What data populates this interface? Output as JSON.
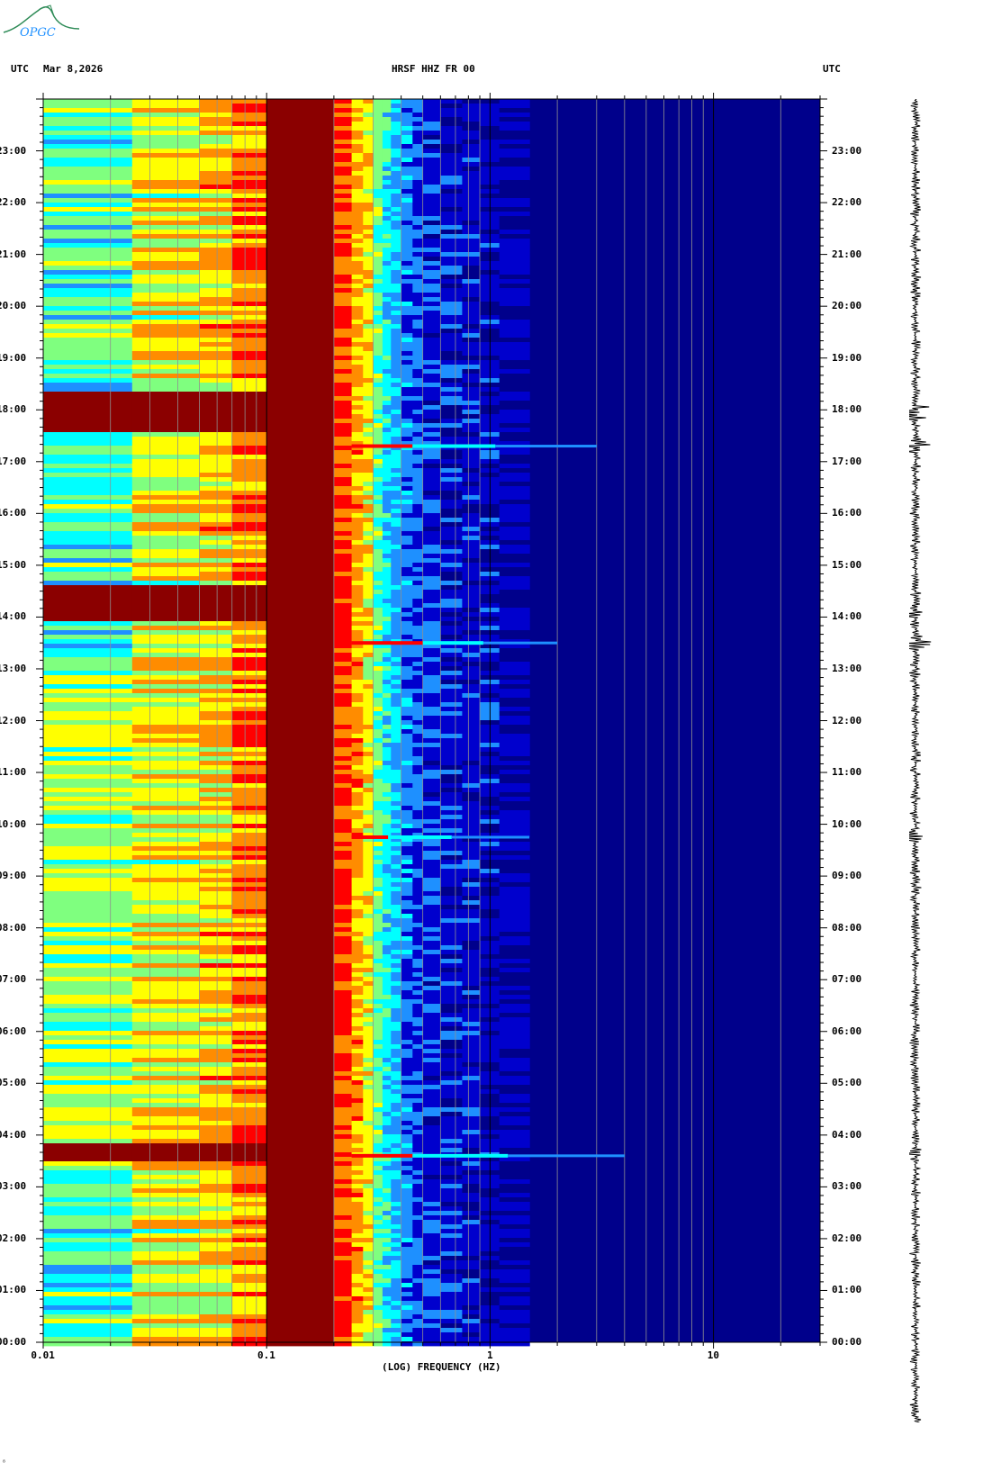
{
  "header": {
    "left_tz": "UTC",
    "date": "Mar 8,2026",
    "station": "HRSF HHZ FR 00",
    "right_tz": "UTC"
  },
  "logo": {
    "text": "OPGC"
  },
  "footer": {
    "mark": "⁸"
  },
  "chart_data": {
    "type": "heatmap",
    "title": "HRSF HHZ FR 00",
    "xlabel": "(LOG) FREQUENCY (HZ)",
    "ylabel": "",
    "x_scale": "log",
    "xlim": [
      0.01,
      30
    ],
    "x_ticks": [
      {
        "value": 0.01,
        "label": "0.01"
      },
      {
        "value": 0.1,
        "label": "0.1"
      },
      {
        "value": 1,
        "label": "1"
      },
      {
        "value": 10,
        "label": "10"
      }
    ],
    "y_ticks": [
      "00:00",
      "01:00",
      "02:00",
      "03:00",
      "04:00",
      "05:00",
      "06:00",
      "07:00",
      "08:00",
      "09:00",
      "10:00",
      "11:00",
      "12:00",
      "13:00",
      "14:00",
      "15:00",
      "16:00",
      "17:00",
      "18:00",
      "19:00",
      "20:00",
      "21:00",
      "22:00",
      "23:00"
    ],
    "ylim_hours": [
      0,
      24
    ],
    "colormap": [
      "#00008b",
      "#0000cd",
      "#1e90ff",
      "#00ffff",
      "#7fff7f",
      "#ffff00",
      "#ff8c00",
      "#ff0000",
      "#8b0000"
    ],
    "grid": true,
    "events_hours": [
      3.6,
      9.75,
      13.5,
      17.3
    ],
    "events_peak_hz": [
      0.45,
      0.35,
      0.5,
      0.45
    ],
    "events_reach_hz": [
      4,
      1.5,
      2,
      3
    ],
    "strong_bands_hours": [
      [
        3.5,
        3.9
      ],
      [
        14.0,
        14.7
      ],
      [
        17.6,
        18.4
      ]
    ]
  }
}
